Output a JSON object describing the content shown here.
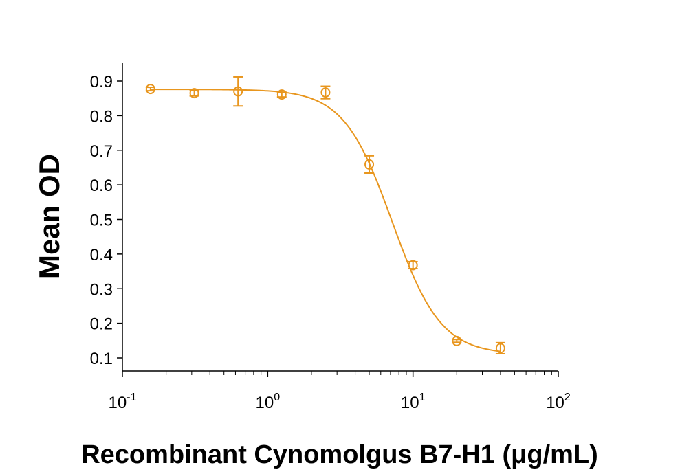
{
  "chart_data": {
    "type": "scatter",
    "title": "",
    "xlabel": "Recombinant Cynomolgus B7-H1 (μg/mL)",
    "ylabel": "Mean OD",
    "xscale": "log",
    "xlim": [
      0.1,
      100
    ],
    "ylim": [
      0.07,
      0.95
    ],
    "x_ticks": [
      {
        "base": "10",
        "exp": "-1"
      },
      {
        "base": "10",
        "exp": "0"
      },
      {
        "base": "10",
        "exp": "1"
      },
      {
        "base": "10",
        "exp": "2"
      }
    ],
    "y_ticks": [
      "0.1",
      "0.2",
      "0.3",
      "0.4",
      "0.5",
      "0.6",
      "0.7",
      "0.8",
      "0.9"
    ],
    "color": "#E8961E",
    "series": [
      {
        "name": "Mean OD",
        "x": [
          0.156,
          0.3125,
          0.625,
          1.25,
          2.5,
          5,
          10,
          20,
          40
        ],
        "y": [
          0.877,
          0.865,
          0.87,
          0.861,
          0.867,
          0.659,
          0.368,
          0.149,
          0.128
        ],
        "err": [
          0.005,
          0.008,
          0.042,
          0.007,
          0.018,
          0.025,
          0.01,
          0.004,
          0.016
        ]
      }
    ],
    "fit": {
      "model": "4PL",
      "top": 0.876,
      "bottom": 0.11,
      "ec50": 7.2,
      "hill": 2.6
    }
  }
}
